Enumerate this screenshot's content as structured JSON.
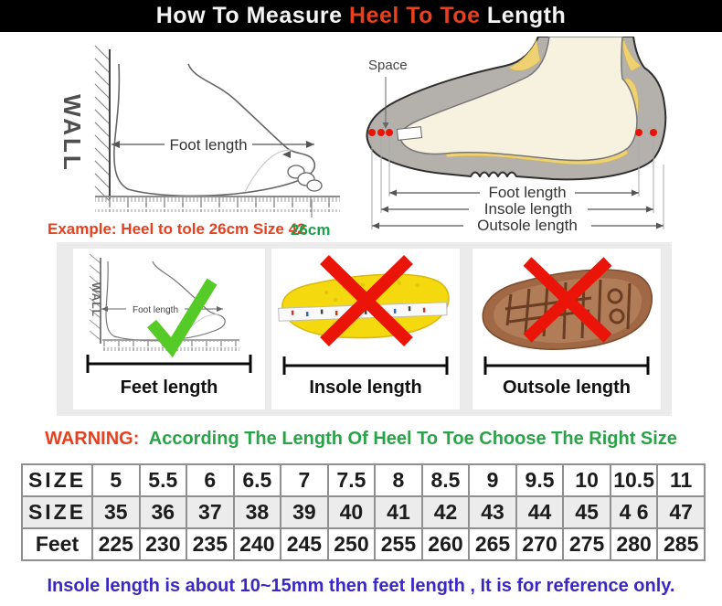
{
  "header": {
    "title_prefix": "How To Measure ",
    "title_highlight": "Heel To Toe",
    "title_suffix": " Length"
  },
  "measure_diagram": {
    "wall_label": "WALL",
    "foot_length_label": "Foot length",
    "example_text": "Example: Heel to tole 26cm Size 42",
    "ruler_mark_label": "26cm"
  },
  "shoe_diagram": {
    "space_label": "Space",
    "foot_length_label": "Foot length",
    "insole_length_label": "Insole length",
    "outsole_length_label": "Outsole length"
  },
  "panels": [
    {
      "label": "Feet length",
      "wall_label": "WALL",
      "inner_label": "Foot length",
      "status": "correct"
    },
    {
      "label": "Insole length",
      "status": "wrong"
    },
    {
      "label": "Outsole length",
      "status": "wrong"
    }
  ],
  "warning": {
    "prefix": "WARNING:",
    "text": "According The Length Of Heel To Toe Choose The Right Size"
  },
  "size_table": {
    "rows": [
      {
        "header": "SIZE",
        "values": [
          "5",
          "5.5",
          "6",
          "6.5",
          "7",
          "7.5",
          "8",
          "8.5",
          "9",
          "9.5",
          "10",
          "10.5",
          "11"
        ]
      },
      {
        "header": "SIZE",
        "values": [
          "35",
          "36",
          "37",
          "38",
          "39",
          "40",
          "41",
          "42",
          "43",
          "44",
          "45",
          "4 6",
          "47"
        ]
      },
      {
        "header": "Feet",
        "values": [
          "225",
          "230",
          "235",
          "240",
          "245",
          "250",
          "255",
          "260",
          "265",
          "270",
          "275",
          "280",
          "285"
        ]
      }
    ]
  },
  "footnote": "Insole length is about 10~15mm then feet length , It is for reference only.",
  "colors": {
    "header_bg": "#000000",
    "accent_red": "#e8401f",
    "ok_green": "#2aa348",
    "ruler_mark_green": "#1aa14e",
    "note_blue": "#3b28c4",
    "check_green": "#56cb28",
    "cross_red": "#ea1508",
    "insole_yellow": "#f4d90e",
    "outsole_brown": "#a06844",
    "shoe_gray": "#b4b1ad",
    "band_gray": "#ebebeb",
    "table_shaded_row": "#ececec"
  }
}
